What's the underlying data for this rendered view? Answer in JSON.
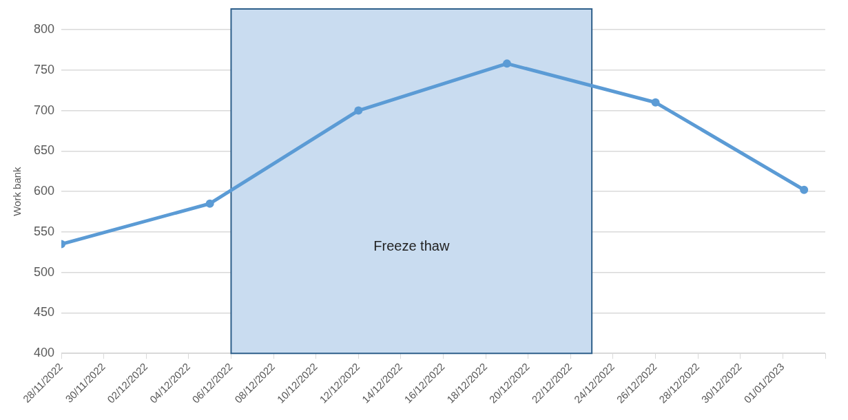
{
  "chart_data": {
    "type": "line",
    "ylabel": "Work bank",
    "x": [
      "2022-11-28",
      "2022-12-05",
      "2022-12-12",
      "2022-12-19",
      "2022-12-26",
      "2023-01-02"
    ],
    "series": [
      {
        "color": "#5b9bd5",
        "values": [
          535,
          585,
          700,
          758,
          710,
          602
        ]
      }
    ],
    "xlim": [
      "2022-11-28",
      "2023-01-03"
    ],
    "xticks": [
      {
        "value": "2022-11-28",
        "label": "28/11/2022"
      },
      {
        "value": "2022-11-30",
        "label": "30/11/2022"
      },
      {
        "value": "2022-12-02",
        "label": "02/12/2022"
      },
      {
        "value": "2022-12-04",
        "label": "04/12/2022"
      },
      {
        "value": "2022-12-06",
        "label": "06/12/2022"
      },
      {
        "value": "2022-12-08",
        "label": "08/12/2022"
      },
      {
        "value": "2022-12-10",
        "label": "10/12/2022"
      },
      {
        "value": "2022-12-12",
        "label": "12/12/2022"
      },
      {
        "value": "2022-12-14",
        "label": "14/12/2022"
      },
      {
        "value": "2022-12-16",
        "label": "16/12/2022"
      },
      {
        "value": "2022-12-18",
        "label": "18/12/2022"
      },
      {
        "value": "2022-12-20",
        "label": "20/12/2022"
      },
      {
        "value": "2022-12-22",
        "label": "22/12/2022"
      },
      {
        "value": "2022-12-24",
        "label": "24/12/2022"
      },
      {
        "value": "2022-12-26",
        "label": "26/12/2022"
      },
      {
        "value": "2022-12-28",
        "label": "28/12/2022"
      },
      {
        "value": "2022-12-30",
        "label": "30/12/2022"
      },
      {
        "value": "2023-01-01",
        "label": "01/01/2023"
      },
      {
        "value": "2023-01-03",
        "label": null
      }
    ],
    "ylim": [
      400,
      800
    ],
    "yticks": [
      400,
      450,
      500,
      550,
      600,
      650,
      700,
      750,
      800
    ],
    "bands": [
      {
        "axis": "x",
        "from": "2022-12-06",
        "to": "2022-12-23",
        "label": "Freeze thaw",
        "color": "#c9dcf0"
      }
    ],
    "grid": "y",
    "legend": false,
    "marker": "circle",
    "line_style": "solid"
  }
}
